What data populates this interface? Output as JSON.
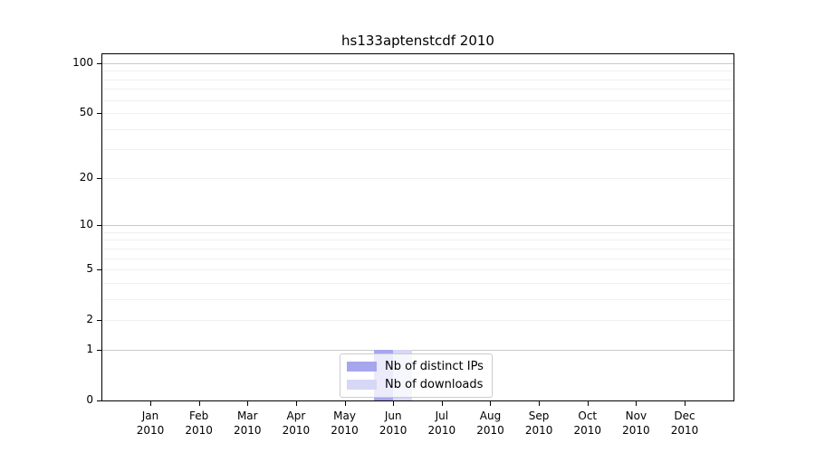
{
  "title": "hs133aptenstcdf 2010",
  "chart_data": {
    "type": "bar",
    "title": "hs133aptenstcdf 2010",
    "xlabel": "",
    "ylabel": "",
    "yscale": "log1p",
    "ylim": [
      0,
      113
    ],
    "yticks": [
      0,
      1,
      2,
      5,
      10,
      20,
      50,
      100
    ],
    "major_grid_values": [
      1,
      10,
      100
    ],
    "minor_grid_values": [
      2,
      3,
      4,
      5,
      6,
      7,
      8,
      9,
      20,
      30,
      40,
      50,
      60,
      70,
      80,
      90
    ],
    "grid": true,
    "legend_position": "lower center",
    "categories": [
      {
        "month": "Jan",
        "year": "2010"
      },
      {
        "month": "Feb",
        "year": "2010"
      },
      {
        "month": "Mar",
        "year": "2010"
      },
      {
        "month": "Apr",
        "year": "2010"
      },
      {
        "month": "May",
        "year": "2010"
      },
      {
        "month": "Jun",
        "year": "2010"
      },
      {
        "month": "Jul",
        "year": "2010"
      },
      {
        "month": "Aug",
        "year": "2010"
      },
      {
        "month": "Sep",
        "year": "2010"
      },
      {
        "month": "Oct",
        "year": "2010"
      },
      {
        "month": "Nov",
        "year": "2010"
      },
      {
        "month": "Dec",
        "year": "2010"
      }
    ],
    "series": [
      {
        "name": "Nb of distinct IPs",
        "color": "#a6a6ee",
        "values": [
          0,
          0,
          0,
          0,
          0,
          1,
          0,
          0,
          0,
          0,
          0,
          0
        ]
      },
      {
        "name": "Nb of downloads",
        "color": "#d7d7f6",
        "values": [
          0,
          0,
          0,
          0,
          0,
          1,
          0,
          0,
          0,
          0,
          0,
          0
        ]
      }
    ],
    "colors": {
      "axis": "#000000",
      "grid_major": "#c9c9c9",
      "grid_minor": "#efefef",
      "legend_border": "#cccccc",
      "legend_background": "rgba(255,255,255,0.78)"
    }
  }
}
